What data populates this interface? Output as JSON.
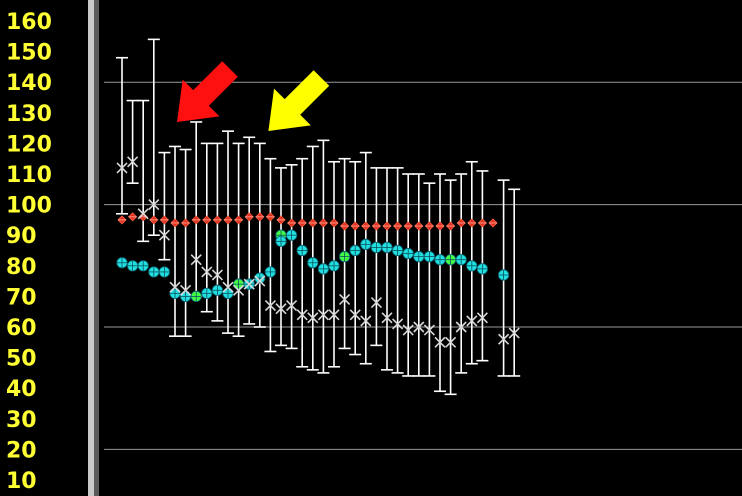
{
  "colors": {
    "background": "#000000",
    "axis_panel": "#000000",
    "tick_label": "#ffff33",
    "gridline": "#9a9a9a",
    "divider_light": "#c8c8c8",
    "divider_dark": "#5a5a5a",
    "whisker": "#ffffff",
    "cross_marker": "#d8d8d8",
    "red_series": "#e03020",
    "cyan_series": "#22e0e0",
    "green_highlight": "#44ff44",
    "arrow_red": "#ff1010",
    "arrow_yellow": "#ffff00"
  },
  "chart_data": {
    "type": "scatter",
    "title": "",
    "xlabel": "",
    "ylabel": "",
    "ylim": [
      5,
      166
    ],
    "y_ticks": [
      160,
      150,
      140,
      130,
      120,
      110,
      100,
      90,
      80,
      70,
      60,
      50,
      40,
      30,
      20,
      10
    ],
    "gridlines": [
      20,
      60,
      100,
      140
    ],
    "x_count": 54,
    "whiskers": [
      {
        "i": 0,
        "low": 97,
        "high": 148
      },
      {
        "i": 1,
        "low": 107,
        "high": 134
      },
      {
        "i": 2,
        "low": 88,
        "high": 134
      },
      {
        "i": 3,
        "low": 90,
        "high": 154
      },
      {
        "i": 4,
        "low": 82,
        "high": 117
      },
      {
        "i": 5,
        "low": 57,
        "high": 119
      },
      {
        "i": 6,
        "low": 57,
        "high": 118
      },
      {
        "i": 7,
        "low": 70,
        "high": 127
      },
      {
        "i": 8,
        "low": 65,
        "high": 120
      },
      {
        "i": 9,
        "low": 62,
        "high": 120
      },
      {
        "i": 10,
        "low": 58,
        "high": 124
      },
      {
        "i": 11,
        "low": 57,
        "high": 120
      },
      {
        "i": 12,
        "low": 61,
        "high": 122
      },
      {
        "i": 13,
        "low": 60,
        "high": 120
      },
      {
        "i": 14,
        "low": 52,
        "high": 115
      },
      {
        "i": 15,
        "low": 54,
        "high": 112
      },
      {
        "i": 16,
        "low": 53,
        "high": 113
      },
      {
        "i": 17,
        "low": 47,
        "high": 115
      },
      {
        "i": 18,
        "low": 46,
        "high": 119
      },
      {
        "i": 19,
        "low": 45,
        "high": 121
      },
      {
        "i": 20,
        "low": 47,
        "high": 114
      },
      {
        "i": 21,
        "low": 53,
        "high": 115
      },
      {
        "i": 22,
        "low": 51,
        "high": 114
      },
      {
        "i": 23,
        "low": 48,
        "high": 117
      },
      {
        "i": 24,
        "low": 54,
        "high": 112
      },
      {
        "i": 25,
        "low": 46,
        "high": 112
      },
      {
        "i": 26,
        "low": 45,
        "high": 112
      },
      {
        "i": 27,
        "low": 44,
        "high": 110
      },
      {
        "i": 28,
        "low": 44,
        "high": 110
      },
      {
        "i": 29,
        "low": 44,
        "high": 107
      },
      {
        "i": 30,
        "low": 39,
        "high": 110
      },
      {
        "i": 31,
        "low": 38,
        "high": 108
      },
      {
        "i": 32,
        "low": 45,
        "high": 110
      },
      {
        "i": 33,
        "low": 48,
        "high": 114
      },
      {
        "i": 34,
        "low": 49,
        "high": 111
      },
      {
        "i": 36,
        "low": 44,
        "high": 108
      },
      {
        "i": 37,
        "low": 44,
        "high": 105
      }
    ],
    "cross_series": [
      112,
      114,
      97,
      100,
      90,
      73,
      72,
      82,
      78,
      77,
      73,
      72,
      74,
      75,
      67,
      66,
      67,
      64,
      63,
      64,
      64,
      69,
      64,
      62,
      68,
      63,
      61,
      59,
      60,
      59,
      55,
      55,
      60,
      62,
      63,
      null,
      56,
      58
    ],
    "red_series": {
      "name": "",
      "points": [
        {
          "i": 0,
          "v": 95
        },
        {
          "i": 1,
          "v": 96
        },
        {
          "i": 2,
          "v": 96
        },
        {
          "i": 3,
          "v": 95
        },
        {
          "i": 4,
          "v": 95
        },
        {
          "i": 5,
          "v": 94
        },
        {
          "i": 6,
          "v": 94
        },
        {
          "i": 7,
          "v": 95
        },
        {
          "i": 8,
          "v": 95
        },
        {
          "i": 9,
          "v": 95
        },
        {
          "i": 10,
          "v": 95
        },
        {
          "i": 11,
          "v": 95
        },
        {
          "i": 12,
          "v": 96
        },
        {
          "i": 13,
          "v": 96
        },
        {
          "i": 14,
          "v": 96
        },
        {
          "i": 15,
          "v": 95
        },
        {
          "i": 16,
          "v": 94
        },
        {
          "i": 17,
          "v": 94
        },
        {
          "i": 18,
          "v": 94
        },
        {
          "i": 19,
          "v": 94
        },
        {
          "i": 20,
          "v": 94
        },
        {
          "i": 21,
          "v": 93
        },
        {
          "i": 22,
          "v": 93
        },
        {
          "i": 23,
          "v": 93
        },
        {
          "i": 24,
          "v": 93
        },
        {
          "i": 25,
          "v": 93
        },
        {
          "i": 26,
          "v": 93
        },
        {
          "i": 27,
          "v": 93
        },
        {
          "i": 28,
          "v": 93
        },
        {
          "i": 29,
          "v": 93
        },
        {
          "i": 30,
          "v": 93
        },
        {
          "i": 31,
          "v": 93
        },
        {
          "i": 32,
          "v": 94
        },
        {
          "i": 33,
          "v": 94
        },
        {
          "i": 34,
          "v": 94
        },
        {
          "i": 35,
          "v": 94
        }
      ]
    },
    "cyan_series": {
      "name": "",
      "points": [
        {
          "i": 0,
          "v": 81,
          "green": false
        },
        {
          "i": 1,
          "v": 80,
          "green": false
        },
        {
          "i": 2,
          "v": 80,
          "green": false
        },
        {
          "i": 3,
          "v": 78,
          "green": false
        },
        {
          "i": 4,
          "v": 78,
          "green": false
        },
        {
          "i": 5,
          "v": 71,
          "green": false
        },
        {
          "i": 6,
          "v": 70,
          "green": false
        },
        {
          "i": 7,
          "v": 70,
          "green": true
        },
        {
          "i": 8,
          "v": 71,
          "green": false
        },
        {
          "i": 9,
          "v": 72,
          "green": false
        },
        {
          "i": 10,
          "v": 71,
          "green": false
        },
        {
          "i": 11,
          "v": 74,
          "green": true
        },
        {
          "i": 12,
          "v": 74,
          "green": false
        },
        {
          "i": 13,
          "v": 76,
          "green": false
        },
        {
          "i": 14,
          "v": 78,
          "green": false
        },
        {
          "i": 15,
          "v": 90,
          "green": true
        },
        {
          "i": 15,
          "v": 88,
          "green": false
        },
        {
          "i": 16,
          "v": 90,
          "green": false
        },
        {
          "i": 17,
          "v": 85,
          "green": false
        },
        {
          "i": 18,
          "v": 81,
          "green": false
        },
        {
          "i": 19,
          "v": 79,
          "green": false
        },
        {
          "i": 20,
          "v": 80,
          "green": false
        },
        {
          "i": 21,
          "v": 83,
          "green": true
        },
        {
          "i": 22,
          "v": 85,
          "green": false
        },
        {
          "i": 23,
          "v": 87,
          "green": false
        },
        {
          "i": 24,
          "v": 86,
          "green": false
        },
        {
          "i": 25,
          "v": 86,
          "green": false
        },
        {
          "i": 26,
          "v": 85,
          "green": false
        },
        {
          "i": 27,
          "v": 84,
          "green": false
        },
        {
          "i": 28,
          "v": 83,
          "green": false
        },
        {
          "i": 29,
          "v": 83,
          "green": false
        },
        {
          "i": 30,
          "v": 82,
          "green": false
        },
        {
          "i": 31,
          "v": 82,
          "green": true
        },
        {
          "i": 32,
          "v": 82,
          "green": false
        },
        {
          "i": 33,
          "v": 80,
          "green": false
        },
        {
          "i": 34,
          "v": 79,
          "green": false
        },
        {
          "i": 36,
          "v": 77,
          "green": false
        }
      ]
    },
    "annotations": [
      {
        "type": "arrow",
        "color": "red",
        "points_to_index": 5
      },
      {
        "type": "arrow",
        "color": "yellow",
        "points_to_index": 14
      }
    ],
    "grid": true,
    "legend": "none"
  }
}
